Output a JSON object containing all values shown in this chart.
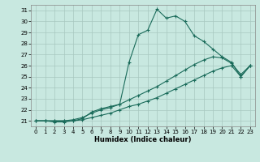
{
  "xlabel": "Humidex (Indice chaleur)",
  "xlim": [
    -0.5,
    23.5
  ],
  "ylim": [
    20.5,
    31.5
  ],
  "xticks": [
    0,
    1,
    2,
    3,
    4,
    5,
    6,
    7,
    8,
    9,
    10,
    11,
    12,
    13,
    14,
    15,
    16,
    17,
    18,
    19,
    20,
    21,
    22,
    23
  ],
  "yticks": [
    21,
    22,
    23,
    24,
    25,
    26,
    27,
    28,
    29,
    30,
    31
  ],
  "bg_color": "#c8e8e0",
  "line_color": "#1a6b5a",
  "grid_color": "#a8c8c0",
  "line1_x": [
    0,
    1,
    2,
    3,
    4,
    5,
    6,
    7,
    8,
    9,
    10,
    11,
    12,
    13,
    14,
    15,
    16,
    17,
    18,
    19,
    20,
    21,
    22,
    23
  ],
  "line1_y": [
    21,
    21,
    21,
    21,
    21,
    21.1,
    21.3,
    21.5,
    21.7,
    22.0,
    22.3,
    22.5,
    22.8,
    23.1,
    23.5,
    23.9,
    24.3,
    24.7,
    25.1,
    25.5,
    25.8,
    26.0,
    25.0,
    26.0
  ],
  "line2_x": [
    0,
    1,
    2,
    3,
    4,
    5,
    6,
    7,
    8,
    9,
    10,
    11,
    12,
    13,
    14,
    15,
    16,
    17,
    18,
    19,
    20,
    21,
    22,
    23
  ],
  "line2_y": [
    21,
    21,
    21,
    21,
    21.1,
    21.3,
    21.7,
    22.0,
    22.2,
    22.5,
    22.9,
    23.3,
    23.7,
    24.1,
    24.6,
    25.1,
    25.6,
    26.1,
    26.5,
    26.8,
    26.7,
    26.2,
    25.2,
    26.0
  ],
  "line3_x": [
    0,
    1,
    2,
    3,
    4,
    5,
    6,
    7,
    8,
    9,
    10,
    11,
    12,
    13,
    14,
    15,
    16,
    17,
    18,
    19,
    20,
    21,
    22,
    23
  ],
  "line3_y": [
    21,
    21,
    20.9,
    20.9,
    21.0,
    21.2,
    21.8,
    22.1,
    22.3,
    22.5,
    26.3,
    28.8,
    29.2,
    31.1,
    30.3,
    30.5,
    30.0,
    28.7,
    28.2,
    27.5,
    26.8,
    26.3,
    25.0,
    26.0
  ]
}
